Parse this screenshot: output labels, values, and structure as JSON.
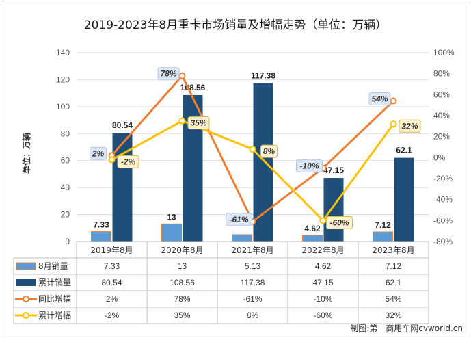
{
  "title": "2019-2023年8月重卡市场销量及增幅走势（单位：万辆）",
  "y_axis_title": "单位：万辆",
  "source": "制图:第一商用车网cvworld.cn",
  "colors": {
    "monthly_bar": "#5b9bd5",
    "cumulative_bar": "#1f4e79",
    "yoy_line": "#ed7d31",
    "cum_growth_line": "#ffc000",
    "grid": "#d9d9d9"
  },
  "chart_data": {
    "type": "bar",
    "categories": [
      "2019年8月",
      "2020年8月",
      "2021年8月",
      "2022年8月",
      "2023年8月"
    ],
    "y_left": {
      "min": 0,
      "max": 140,
      "step": 20,
      "ticks": [
        "0",
        "20",
        "40",
        "60",
        "80",
        "100",
        "120",
        "140"
      ]
    },
    "y_right": {
      "min": -80,
      "max": 100,
      "step": 20,
      "ticks": [
        "-80%",
        "-60%",
        "-40%",
        "-20%",
        "0%",
        "20%",
        "40%",
        "60%",
        "80%",
        "100%"
      ]
    },
    "grid": true,
    "legend": "table-below",
    "series": [
      {
        "name": "8月销量",
        "type": "bar",
        "axis": "left",
        "values": [
          7.33,
          13,
          5.13,
          4.62,
          7.12
        ],
        "labels": [
          "7.33",
          "13",
          "5.13",
          "4.62",
          "7.12"
        ],
        "chart_labels": [
          "7.33",
          "13",
          "",
          "4.62",
          "7.12"
        ]
      },
      {
        "name": "累计销量",
        "type": "bar",
        "axis": "left",
        "values": [
          80.54,
          108.56,
          117.38,
          47.15,
          62.1
        ],
        "labels": [
          "80.54",
          "108.56",
          "117.38",
          "47.15",
          "62.1"
        ]
      },
      {
        "name": "同比增幅",
        "type": "line",
        "axis": "right",
        "values": [
          2,
          78,
          -61,
          -10,
          54
        ],
        "labels": [
          "2%",
          "78%",
          "-61%",
          "-10%",
          "54%"
        ]
      },
      {
        "name": "累计增幅",
        "type": "line",
        "axis": "right",
        "values": [
          -2,
          35,
          8,
          -60,
          32
        ],
        "labels": [
          "-2%",
          "35%",
          "8%",
          "-60%",
          "32%"
        ]
      }
    ]
  }
}
